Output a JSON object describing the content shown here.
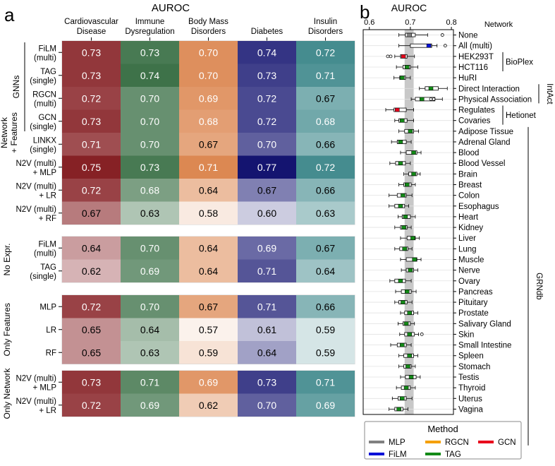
{
  "panel_a": {
    "letter": "a"
  },
  "panel_b": {
    "letter": "b"
  },
  "chart_data": [
    {
      "type": "heatmap",
      "title": "AUROC",
      "columns": [
        "Cardiovascular Disease",
        "Immune Dysregulation",
        "Body Mass Disorders",
        "Diabetes",
        "Insulin Disorders"
      ],
      "column_label_lines": [
        [
          "Cardiovascular",
          "Disease"
        ],
        [
          "Immune",
          "Dysregulation"
        ],
        [
          "Body Mass",
          "Disorders"
        ],
        [
          "Diabetes"
        ],
        [
          "Insulin",
          "Disorders"
        ]
      ],
      "colors": [
        "#7a0a0f",
        "#1f5c2c",
        "#cf5a10",
        "#141470",
        "#0d6a6e"
      ],
      "groups": [
        {
          "name": "Network + Features",
          "label_lines": [
            "Network",
            "+ Features"
          ],
          "subgroup": {
            "name": "GNNs",
            "rows": 4
          },
          "rows": [
            {
              "label": [
                "FiLM",
                "(multi)"
              ],
              "values": [
                0.73,
                0.73,
                0.7,
                0.74,
                0.72
              ]
            },
            {
              "label": [
                "TAG",
                "(single)"
              ],
              "values": [
                0.73,
                0.74,
                0.7,
                0.73,
                0.71
              ]
            },
            {
              "label": [
                "RGCN",
                "(multi)"
              ],
              "values": [
                0.72,
                0.7,
                0.69,
                0.72,
                0.67
              ]
            },
            {
              "label": [
                "GCN",
                "(single)"
              ],
              "values": [
                0.73,
                0.7,
                0.68,
                0.72,
                0.68
              ]
            },
            {
              "label": [
                "LINKX",
                "(single)"
              ],
              "values": [
                0.71,
                0.7,
                0.67,
                0.7,
                0.66
              ]
            },
            {
              "label": [
                "N2V (multi)",
                "+ MLP"
              ],
              "values": [
                0.75,
                0.73,
                0.71,
                0.77,
                0.72
              ]
            },
            {
              "label": [
                "N2V (multi)",
                "+ LR"
              ],
              "values": [
                0.72,
                0.68,
                0.64,
                0.67,
                0.66
              ]
            },
            {
              "label": [
                "N2V (multi)",
                "+ RF"
              ],
              "values": [
                0.67,
                0.63,
                0.58,
                0.6,
                0.63
              ]
            }
          ]
        },
        {
          "name": "No Expr.",
          "label_lines": [
            "No Expr."
          ],
          "rows": [
            {
              "label": [
                "FiLM",
                "(multi)"
              ],
              "values": [
                0.64,
                0.7,
                0.64,
                0.69,
                0.67
              ]
            },
            {
              "label": [
                "TAG",
                "(single)"
              ],
              "values": [
                0.62,
                0.69,
                0.64,
                0.71,
                0.64
              ]
            }
          ]
        },
        {
          "name": "Only Features",
          "label_lines": [
            "Only Features"
          ],
          "rows": [
            {
              "label": [
                "MLP"
              ],
              "values": [
                0.72,
                0.7,
                0.67,
                0.71,
                0.66
              ]
            },
            {
              "label": [
                "LR"
              ],
              "values": [
                0.65,
                0.64,
                0.57,
                0.61,
                0.59
              ]
            },
            {
              "label": [
                "RF"
              ],
              "values": [
                0.65,
                0.63,
                0.59,
                0.64,
                0.59
              ]
            }
          ]
        },
        {
          "name": "Only Network",
          "label_lines": [
            "Only Network"
          ],
          "rows": [
            {
              "label": [
                "N2V (multi)",
                "+ MLP"
              ],
              "values": [
                0.73,
                0.71,
                0.69,
                0.73,
                0.71
              ]
            },
            {
              "label": [
                "N2V (multi)",
                "+ LR"
              ],
              "values": [
                0.72,
                0.69,
                0.62,
                0.7,
                0.69
              ]
            }
          ]
        }
      ]
    },
    {
      "type": "boxplot",
      "title": "AUROC",
      "ylabel": "Network",
      "xlim": [
        0.585,
        0.805
      ],
      "xticks": [
        0.6,
        0.7,
        0.8
      ],
      "xtick_labels": [
        "0.6",
        "0.7",
        "0.8"
      ],
      "reference_band": [
        0.686,
        0.708
      ],
      "legend": {
        "title": "Method",
        "entries": [
          {
            "name": "MLP",
            "color": "#808080"
          },
          {
            "name": "RGCN",
            "color": "#f5a000"
          },
          {
            "name": "GCN",
            "color": "#e8001c"
          },
          {
            "name": "FiLM",
            "color": "#0010d8"
          },
          {
            "name": "TAG",
            "color": "#138a17"
          }
        ]
      },
      "brackets": [
        {
          "label": "BioPlex",
          "from": 2,
          "to": 3,
          "orientation": "horizontal"
        },
        {
          "label": "IntAct",
          "from": 5,
          "to": 6,
          "orientation": "vertical"
        },
        {
          "label": "Hetionet",
          "from": 7,
          "to": 8,
          "orientation": "horizontal"
        },
        {
          "label": "GRNdb",
          "from": 9,
          "to": 38,
          "orientation": "vertical"
        }
      ],
      "networks": [
        {
          "name": "None",
          "q1": 0.688,
          "median": 0.698,
          "q3": 0.712,
          "wmin": 0.672,
          "wmax": 0.742,
          "method": "MLP",
          "outliers": [
            0.778
          ]
        },
        {
          "name": "All (multi)",
          "q1": 0.7,
          "median": 0.745,
          "q3": 0.752,
          "wmin": 0.672,
          "wmax": 0.765,
          "method": "FiLM",
          "outliers": [
            0.785
          ]
        },
        {
          "name": "HEK293T",
          "q1": 0.676,
          "median": 0.683,
          "q3": 0.692,
          "wmin": 0.662,
          "wmax": 0.71,
          "method": "GCN",
          "outliers": [
            0.645,
            0.652
          ]
        },
        {
          "name": "HCT116",
          "q1": 0.682,
          "median": 0.692,
          "q3": 0.7,
          "wmin": 0.666,
          "wmax": 0.718,
          "method": "TAG",
          "outliers": []
        },
        {
          "name": "HuRI",
          "q1": 0.674,
          "median": 0.68,
          "q3": 0.688,
          "wmin": 0.66,
          "wmax": 0.7,
          "method": "TAG",
          "outliers": []
        },
        {
          "name": "Direct Interaction",
          "q1": 0.736,
          "median": 0.75,
          "q3": 0.768,
          "wmin": 0.722,
          "wmax": 0.79,
          "method": "TAG",
          "outliers": []
        },
        {
          "name": "Physical Association",
          "q1": 0.712,
          "median": 0.728,
          "q3": 0.76,
          "wmin": 0.702,
          "wmax": 0.778,
          "method": "TAG",
          "outliers": [
            0.75,
            0.757
          ]
        },
        {
          "name": "Regulates",
          "q1": 0.66,
          "median": 0.668,
          "q3": 0.69,
          "wmin": 0.64,
          "wmax": 0.708,
          "method": "GCN",
          "outliers": []
        },
        {
          "name": "Covaries",
          "q1": 0.672,
          "median": 0.68,
          "q3": 0.692,
          "wmin": 0.662,
          "wmax": 0.708,
          "method": "TAG",
          "outliers": []
        },
        {
          "name": "Adipose Tissue",
          "q1": 0.686,
          "median": 0.7,
          "q3": 0.708,
          "wmin": 0.672,
          "wmax": 0.72,
          "method": "TAG",
          "outliers": []
        },
        {
          "name": "Adrenal Gland",
          "q1": 0.668,
          "median": 0.676,
          "q3": 0.69,
          "wmin": 0.654,
          "wmax": 0.702,
          "method": "TAG",
          "outliers": []
        },
        {
          "name": "Blood",
          "q1": 0.69,
          "median": 0.708,
          "q3": 0.716,
          "wmin": 0.676,
          "wmax": 0.726,
          "method": "TAG",
          "outliers": []
        },
        {
          "name": "Blood Vessel",
          "q1": 0.664,
          "median": 0.676,
          "q3": 0.688,
          "wmin": 0.65,
          "wmax": 0.7,
          "method": "TAG",
          "outliers": []
        },
        {
          "name": "Brain",
          "q1": 0.696,
          "median": 0.708,
          "q3": 0.716,
          "wmin": 0.684,
          "wmax": 0.724,
          "method": "TAG",
          "outliers": []
        },
        {
          "name": "Breast",
          "q1": 0.684,
          "median": 0.692,
          "q3": 0.702,
          "wmin": 0.672,
          "wmax": 0.712,
          "method": "TAG",
          "outliers": []
        },
        {
          "name": "Colon",
          "q1": 0.668,
          "median": 0.682,
          "q3": 0.69,
          "wmin": 0.648,
          "wmax": 0.704,
          "method": "TAG",
          "outliers": []
        },
        {
          "name": "Esophagus",
          "q1": 0.662,
          "median": 0.676,
          "q3": 0.686,
          "wmin": 0.648,
          "wmax": 0.696,
          "method": "TAG",
          "outliers": []
        },
        {
          "name": "Heart",
          "q1": 0.68,
          "median": 0.688,
          "q3": 0.7,
          "wmin": 0.67,
          "wmax": 0.712,
          "method": "TAG",
          "outliers": []
        },
        {
          "name": "Kidney",
          "q1": 0.676,
          "median": 0.684,
          "q3": 0.692,
          "wmin": 0.662,
          "wmax": 0.702,
          "method": "TAG",
          "outliers": []
        },
        {
          "name": "Liver",
          "q1": 0.692,
          "median": 0.706,
          "q3": 0.712,
          "wmin": 0.676,
          "wmax": 0.722,
          "method": "TAG",
          "outliers": []
        },
        {
          "name": "Lung",
          "q1": 0.674,
          "median": 0.686,
          "q3": 0.694,
          "wmin": 0.662,
          "wmax": 0.704,
          "method": "TAG",
          "outliers": []
        },
        {
          "name": "Muscle",
          "q1": 0.69,
          "median": 0.71,
          "q3": 0.716,
          "wmin": 0.676,
          "wmax": 0.726,
          "method": "TAG",
          "outliers": []
        },
        {
          "name": "Nerve",
          "q1": 0.69,
          "median": 0.7,
          "q3": 0.708,
          "wmin": 0.678,
          "wmax": 0.718,
          "method": "TAG",
          "outliers": []
        },
        {
          "name": "Ovary",
          "q1": 0.662,
          "median": 0.676,
          "q3": 0.688,
          "wmin": 0.65,
          "wmax": 0.702,
          "method": "TAG",
          "outliers": []
        },
        {
          "name": "Pancreas",
          "q1": 0.678,
          "median": 0.692,
          "q3": 0.702,
          "wmin": 0.664,
          "wmax": 0.714,
          "method": "TAG",
          "outliers": []
        },
        {
          "name": "Pituitary",
          "q1": 0.672,
          "median": 0.682,
          "q3": 0.692,
          "wmin": 0.662,
          "wmax": 0.704,
          "method": "TAG",
          "outliers": []
        },
        {
          "name": "Prostate",
          "q1": 0.686,
          "median": 0.698,
          "q3": 0.708,
          "wmin": 0.676,
          "wmax": 0.718,
          "method": "TAG",
          "outliers": []
        },
        {
          "name": "Salivary Gland",
          "q1": 0.682,
          "median": 0.69,
          "q3": 0.7,
          "wmin": 0.67,
          "wmax": 0.71,
          "method": "TAG",
          "outliers": []
        },
        {
          "name": "Skin",
          "q1": 0.686,
          "median": 0.698,
          "q3": 0.71,
          "wmin": 0.674,
          "wmax": 0.72,
          "method": "TAG",
          "outliers": [
            0.728
          ]
        },
        {
          "name": "Small Intestine",
          "q1": 0.668,
          "median": 0.68,
          "q3": 0.69,
          "wmin": 0.652,
          "wmax": 0.702,
          "method": "TAG",
          "outliers": []
        },
        {
          "name": "Spleen",
          "q1": 0.684,
          "median": 0.698,
          "q3": 0.708,
          "wmin": 0.672,
          "wmax": 0.718,
          "method": "TAG",
          "outliers": []
        },
        {
          "name": "Stomach",
          "q1": 0.684,
          "median": 0.694,
          "q3": 0.702,
          "wmin": 0.672,
          "wmax": 0.712,
          "method": "TAG",
          "outliers": []
        },
        {
          "name": "Testis",
          "q1": 0.688,
          "median": 0.702,
          "q3": 0.714,
          "wmin": 0.676,
          "wmax": 0.724,
          "method": "TAG",
          "outliers": []
        },
        {
          "name": "Thyroid",
          "q1": 0.678,
          "median": 0.69,
          "q3": 0.7,
          "wmin": 0.666,
          "wmax": 0.712,
          "method": "TAG",
          "outliers": []
        },
        {
          "name": "Uterus",
          "q1": 0.67,
          "median": 0.68,
          "q3": 0.69,
          "wmin": 0.656,
          "wmax": 0.704,
          "method": "TAG",
          "outliers": []
        },
        {
          "name": "Vagina",
          "q1": 0.662,
          "median": 0.672,
          "q3": 0.682,
          "wmin": 0.648,
          "wmax": 0.694,
          "method": "TAG",
          "outliers": []
        }
      ]
    }
  ]
}
